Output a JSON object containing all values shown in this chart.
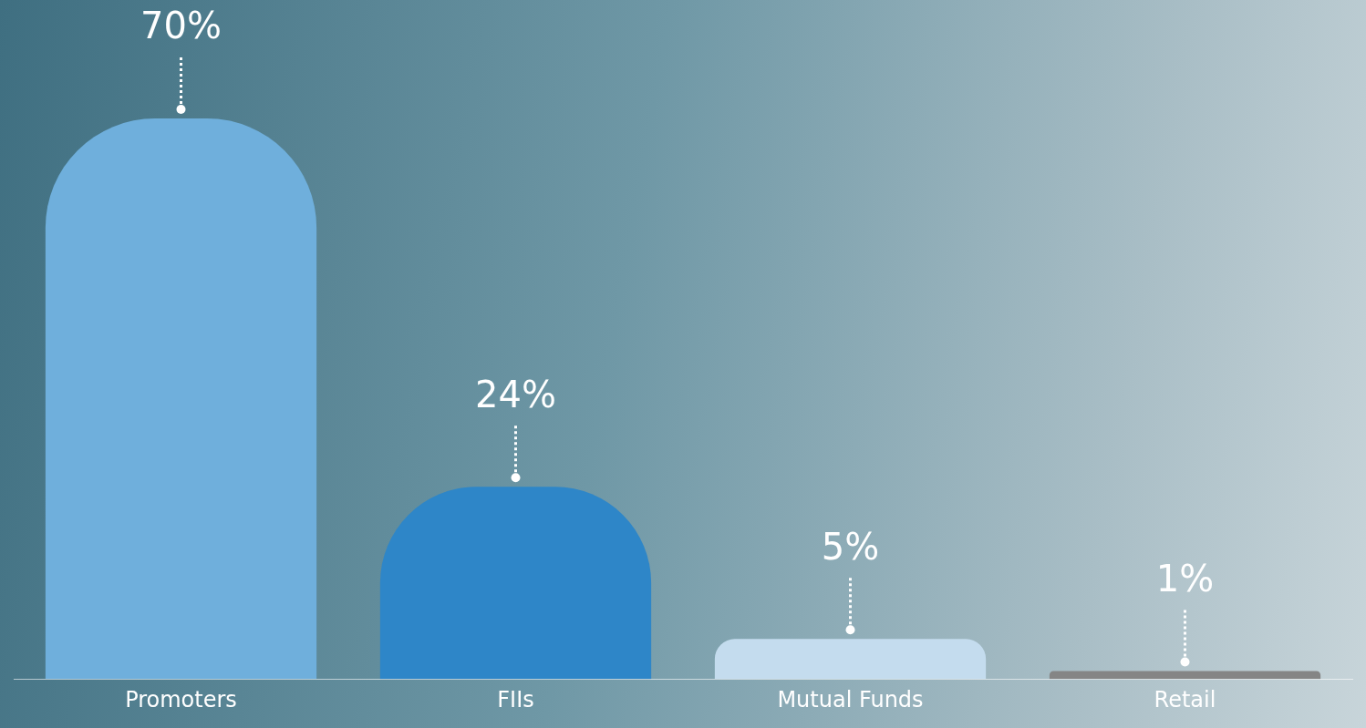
{
  "chart_data": {
    "type": "bar",
    "categories": [
      "Promoters",
      "FIIs",
      "Mutual Funds",
      "Retail"
    ],
    "values": [
      70,
      24,
      5,
      1
    ],
    "colors": [
      "#6fafdc",
      "#2e86c8",
      "#c4dcee",
      "#858585"
    ],
    "value_labels": [
      "70%",
      "24%",
      "5%",
      "1%"
    ],
    "grid": false,
    "legend": false
  }
}
